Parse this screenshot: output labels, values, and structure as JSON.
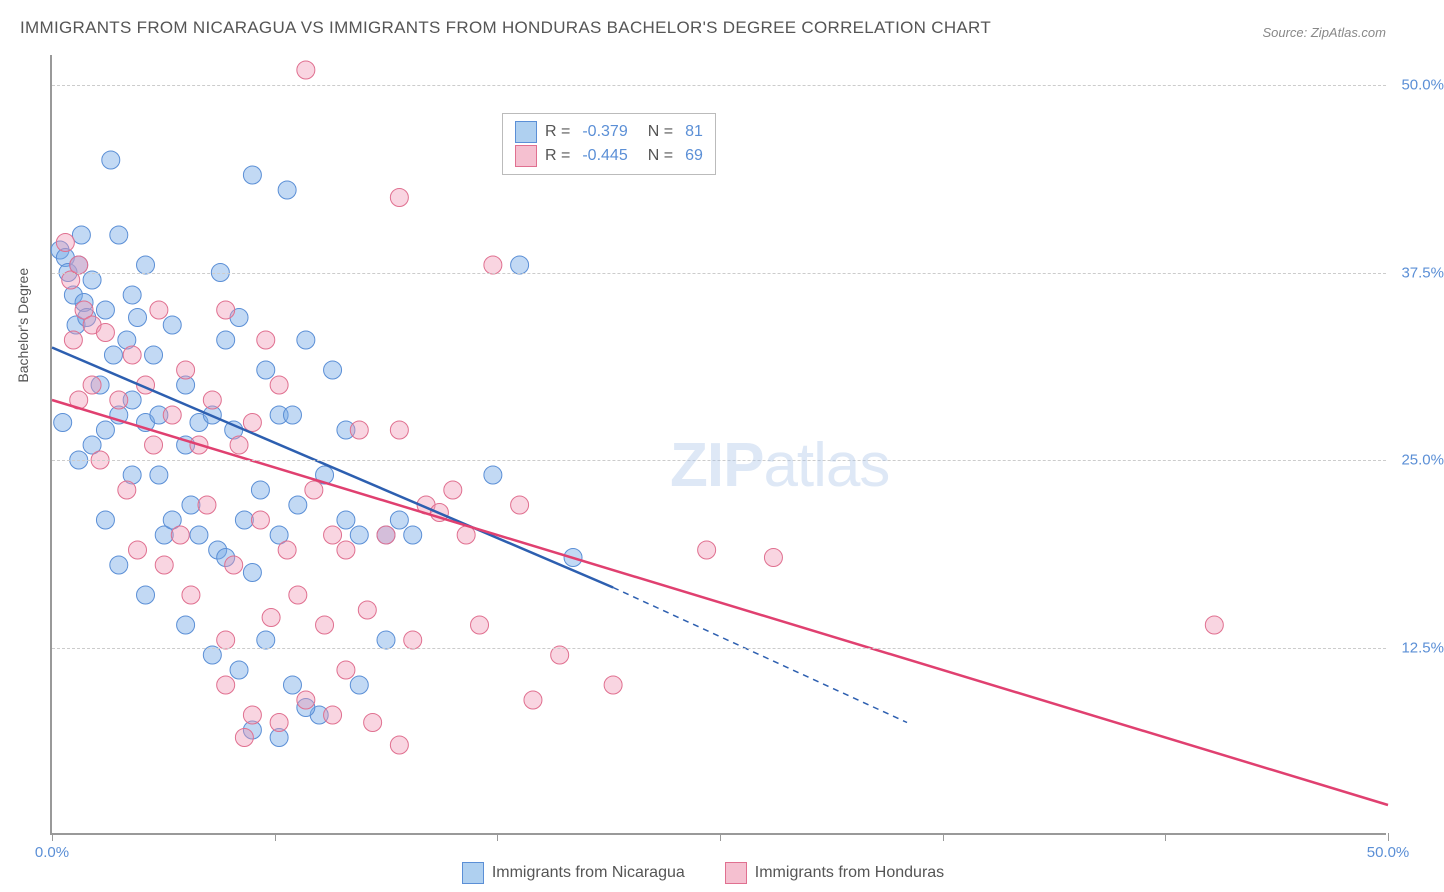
{
  "title": "IMMIGRANTS FROM NICARAGUA VS IMMIGRANTS FROM HONDURAS BACHELOR'S DEGREE CORRELATION CHART",
  "source_prefix": "Source: ",
  "source_name": "ZipAtlas.com",
  "y_axis_label": "Bachelor's Degree",
  "watermark_bold": "ZIP",
  "watermark_rest": "atlas",
  "chart": {
    "type": "scatter",
    "background_color": "#ffffff",
    "grid_color": "#cccccc",
    "axis_color": "#999999",
    "xlim": [
      0,
      50
    ],
    "ylim": [
      0,
      52
    ],
    "x_ticks": [
      0,
      8.33,
      16.67,
      25,
      33.33,
      41.67,
      50
    ],
    "x_tick_labels": {
      "0": "0.0%",
      "50": "50.0%"
    },
    "y_gridlines": [
      12.5,
      25,
      37.5,
      50
    ],
    "y_tick_labels": {
      "12.5": "12.5%",
      "25": "25.0%",
      "37.5": "37.5%",
      "50": "50.0%"
    },
    "label_fontsize": 15,
    "label_color": "#5b8fd6",
    "series": [
      {
        "name": "Immigrants from Nicaragua",
        "color_fill": "rgba(120,170,230,0.45)",
        "color_stroke": "#5b8fd6",
        "swatch_fill": "#afd0f0",
        "swatch_border": "#5b8fd6",
        "R": "-0.379",
        "N": "81",
        "marker_radius": 9,
        "trend": {
          "x1": 0,
          "y1": 32.5,
          "x2": 21,
          "y2": 16.5,
          "solid_end_x": 21,
          "dash_end_x": 32,
          "dash_end_y": 7.5,
          "color": "#2d5fb0",
          "width": 2.5
        },
        "points": [
          [
            0.3,
            39
          ],
          [
            0.5,
            38.5
          ],
          [
            0.6,
            37.5
          ],
          [
            0.8,
            36
          ],
          [
            1.0,
            38
          ],
          [
            1.2,
            35.5
          ],
          [
            0.9,
            34
          ],
          [
            1.1,
            40
          ],
          [
            1.3,
            34.5
          ],
          [
            1.5,
            37
          ],
          [
            0.4,
            27.5
          ],
          [
            2.2,
            45
          ],
          [
            2.0,
            35
          ],
          [
            2.5,
            40
          ],
          [
            2.8,
            33
          ],
          [
            3.0,
            36
          ],
          [
            2.3,
            32
          ],
          [
            3.2,
            34.5
          ],
          [
            1.8,
            30
          ],
          [
            3.5,
            38
          ],
          [
            1.5,
            26
          ],
          [
            2.0,
            27
          ],
          [
            2.5,
            28
          ],
          [
            3.0,
            29
          ],
          [
            3.5,
            27.5
          ],
          [
            4.0,
            28
          ],
          [
            4.5,
            34
          ],
          [
            5.0,
            30
          ],
          [
            5.5,
            27.5
          ],
          [
            6.0,
            28
          ],
          [
            6.5,
            33
          ],
          [
            7.0,
            34.5
          ],
          [
            7.5,
            44
          ],
          [
            8.0,
            31
          ],
          [
            8.5,
            28
          ],
          [
            8.8,
            43
          ],
          [
            4.2,
            20
          ],
          [
            5.2,
            22
          ],
          [
            6.2,
            19
          ],
          [
            7.2,
            21
          ],
          [
            2.5,
            18
          ],
          [
            3.5,
            16
          ],
          [
            5.5,
            20
          ],
          [
            6.5,
            18.5
          ],
          [
            7.5,
            17.5
          ],
          [
            8.5,
            20
          ],
          [
            9.0,
            28
          ],
          [
            9.5,
            33
          ],
          [
            10.5,
            31
          ],
          [
            11.0,
            27
          ],
          [
            5.0,
            14
          ],
          [
            6.0,
            12
          ],
          [
            7.0,
            11
          ],
          [
            8.0,
            13
          ],
          [
            9.0,
            10
          ],
          [
            10.0,
            8
          ],
          [
            7.5,
            7
          ],
          [
            8.5,
            6.5
          ],
          [
            9.5,
            8.5
          ],
          [
            12.5,
            13
          ],
          [
            6.3,
            37.5
          ],
          [
            4.0,
            24
          ],
          [
            5.0,
            26
          ],
          [
            11.5,
            20
          ],
          [
            12.5,
            20
          ],
          [
            13.0,
            21
          ],
          [
            16.5,
            24
          ],
          [
            17.5,
            38
          ],
          [
            19.5,
            18.5
          ],
          [
            3.8,
            32
          ],
          [
            4.5,
            21
          ],
          [
            1.0,
            25
          ],
          [
            2.0,
            21
          ],
          [
            3.0,
            24
          ],
          [
            6.8,
            27
          ],
          [
            7.8,
            23
          ],
          [
            11.0,
            21
          ],
          [
            11.5,
            10
          ],
          [
            13.5,
            20
          ],
          [
            9.2,
            22
          ],
          [
            10.2,
            24
          ]
        ]
      },
      {
        "name": "Immigrants from Honduras",
        "color_fill": "rgba(240,150,180,0.40)",
        "color_stroke": "#e07090",
        "swatch_fill": "#f5c0d0",
        "swatch_border": "#e07090",
        "R": "-0.445",
        "N": "69",
        "marker_radius": 9,
        "trend": {
          "x1": 0,
          "y1": 29,
          "x2": 50,
          "y2": 2,
          "color": "#e04070",
          "width": 2.5
        },
        "points": [
          [
            0.5,
            39.5
          ],
          [
            0.7,
            37
          ],
          [
            1.0,
            38
          ],
          [
            0.8,
            33
          ],
          [
            1.2,
            35
          ],
          [
            1.5,
            34
          ],
          [
            1.0,
            29
          ],
          [
            1.5,
            30
          ],
          [
            2.0,
            33.5
          ],
          [
            2.5,
            29
          ],
          [
            3.0,
            32
          ],
          [
            3.5,
            30
          ],
          [
            4.0,
            35
          ],
          [
            4.5,
            28
          ],
          [
            5.0,
            31
          ],
          [
            5.5,
            26
          ],
          [
            6.0,
            29
          ],
          [
            6.5,
            35
          ],
          [
            7.0,
            26
          ],
          [
            7.5,
            27.5
          ],
          [
            8.0,
            33
          ],
          [
            8.5,
            30
          ],
          [
            9.5,
            51
          ],
          [
            13.0,
            42.5
          ],
          [
            1.8,
            25
          ],
          [
            2.8,
            23
          ],
          [
            3.8,
            26
          ],
          [
            4.8,
            20
          ],
          [
            5.8,
            22
          ],
          [
            6.8,
            18
          ],
          [
            7.8,
            21
          ],
          [
            8.8,
            19
          ],
          [
            9.8,
            23
          ],
          [
            10.5,
            20
          ],
          [
            11.0,
            19
          ],
          [
            11.5,
            27
          ],
          [
            13.0,
            27
          ],
          [
            14.0,
            22
          ],
          [
            15.0,
            23
          ],
          [
            16.5,
            38
          ],
          [
            6.5,
            10
          ],
          [
            7.5,
            8
          ],
          [
            8.5,
            7.5
          ],
          [
            9.5,
            9
          ],
          [
            10.5,
            8
          ],
          [
            12.0,
            7.5
          ],
          [
            13.5,
            13
          ],
          [
            16.0,
            14
          ],
          [
            18.0,
            9
          ],
          [
            19.0,
            12
          ],
          [
            21.0,
            10
          ],
          [
            11.0,
            11
          ],
          [
            12.5,
            20
          ],
          [
            14.5,
            21.5
          ],
          [
            15.5,
            20
          ],
          [
            17.5,
            22
          ],
          [
            7.2,
            6.5
          ],
          [
            13.0,
            6
          ],
          [
            24.5,
            19
          ],
          [
            27.0,
            18.5
          ],
          [
            43.5,
            14
          ],
          [
            3.2,
            19
          ],
          [
            4.2,
            18
          ],
          [
            5.2,
            16
          ],
          [
            6.5,
            13
          ],
          [
            8.2,
            14.5
          ],
          [
            9.2,
            16
          ],
          [
            10.2,
            14
          ],
          [
            11.8,
            15
          ]
        ]
      }
    ]
  },
  "legend_R_label": "R =",
  "legend_N_label": "N ="
}
